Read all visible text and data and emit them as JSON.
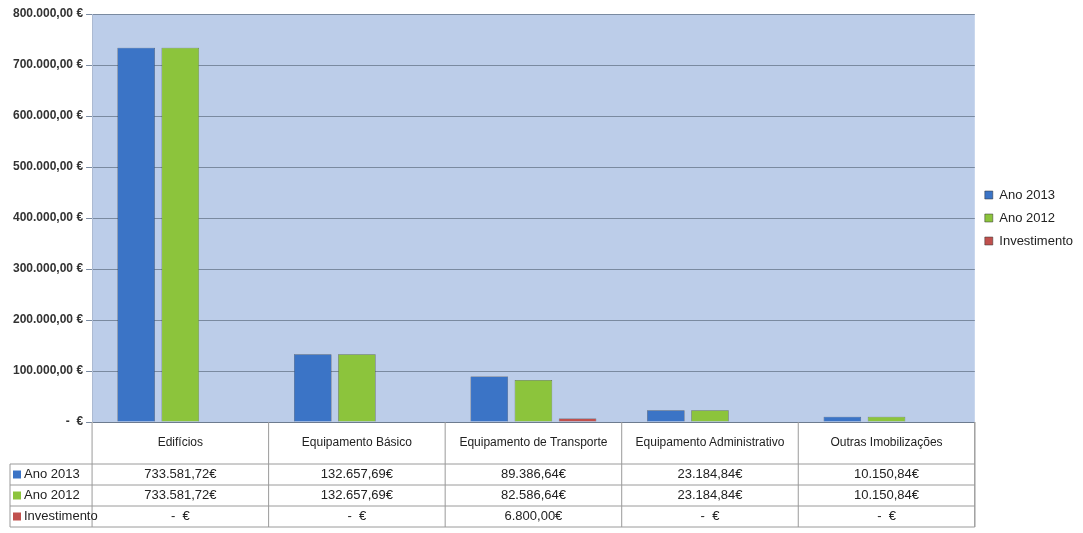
{
  "chart_data": {
    "type": "bar",
    "categories": [
      "Edifícios",
      "Equipamento Básico",
      "Equipamento de Transporte",
      "Equipamento Administrativo",
      "Outras Imobilizações"
    ],
    "series": [
      {
        "name": "Ano 2013",
        "color": "#3b74c6",
        "values": [
          733581.72,
          132657.69,
          89386.64,
          23184.84,
          10150.84
        ],
        "value_labels": [
          "733.581,72€",
          "132.657,69€",
          "89.386,64€",
          "23.184,84€",
          "10.150,84€"
        ]
      },
      {
        "name": "Ano 2012",
        "color": "#8cc43c",
        "values": [
          733581.72,
          132657.69,
          82586.64,
          23184.84,
          10150.84
        ],
        "value_labels": [
          "733.581,72€",
          "132.657,69€",
          "82.586,64€",
          "23.184,84€",
          "10.150,84€"
        ]
      },
      {
        "name": "Investimento",
        "color": "#c0504d",
        "values": [
          0,
          0,
          6800,
          0,
          0
        ],
        "value_labels": [
          "-  €",
          "-  €",
          "6.800,00€",
          "-  €",
          "-  €"
        ]
      }
    ],
    "ylim": [
      0,
      800000
    ],
    "yticks": [
      {
        "value": 0,
        "label": "-  €"
      },
      {
        "value": 100000,
        "label": "100.000,00 €"
      },
      {
        "value": 200000,
        "label": "200.000,00 €"
      },
      {
        "value": 300000,
        "label": "300.000,00 €"
      },
      {
        "value": 400000,
        "label": "400.000,00 €"
      },
      {
        "value": 500000,
        "label": "500.000,00 €"
      },
      {
        "value": 600000,
        "label": "600.000,00 €"
      },
      {
        "value": 700000,
        "label": "700.000,00 €"
      },
      {
        "value": 800000,
        "label": "800.000,00 €"
      }
    ],
    "grid": "y",
    "legend": "right"
  }
}
